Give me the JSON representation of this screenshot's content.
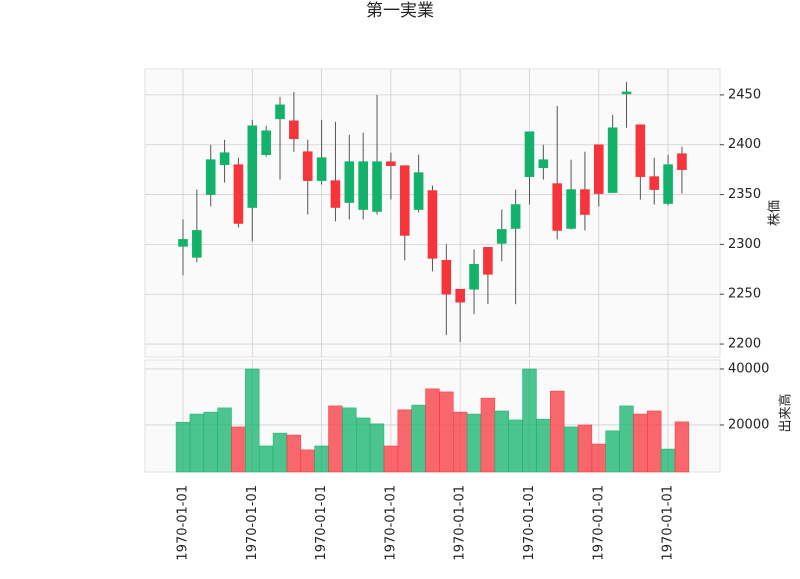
{
  "chart_data": {
    "type": "candlestick",
    "title": "第一実業",
    "categories": [
      "1970-01-01",
      null,
      null,
      null,
      null,
      "1970-01-01",
      null,
      null,
      null,
      null,
      "1970-01-01",
      null,
      null,
      null,
      null,
      "1970-01-01",
      null,
      null,
      null,
      null,
      "1970-01-01",
      null,
      null,
      null,
      null,
      "1970-01-01",
      null,
      null,
      null,
      null,
      "1970-01-01",
      null,
      null,
      null,
      null,
      "1970-01-01",
      null
    ],
    "open": [
      2298,
      2287,
      2350,
      2380,
      2380,
      2337,
      2390,
      2426,
      2424,
      2393,
      2364,
      2364,
      2342,
      2335,
      2333,
      2383,
      2379,
      2335,
      2354,
      2284,
      2255,
      2255,
      2297,
      2301,
      2316,
      2368,
      2377,
      2361,
      2316,
      2355,
      2400,
      2352,
      2451,
      2420,
      2368,
      2341,
      2391
    ],
    "high": [
      2325,
      2355,
      2400,
      2405,
      2387,
      2425,
      2419,
      2448,
      2453,
      2405,
      2425,
      2423,
      2410,
      2412,
      2450,
      2392,
      2379,
      2390,
      2359,
      2300,
      2255,
      2295,
      2297,
      2335,
      2355,
      2413,
      2400,
      2439,
      2385,
      2393,
      2400,
      2430,
      2463,
      2420,
      2387,
      2390,
      2398
    ],
    "low": [
      2269,
      2282,
      2338,
      2362,
      2317,
      2303,
      2388,
      2365,
      2393,
      2330,
      2360,
      2323,
      2325,
      2325,
      2330,
      2345,
      2284,
      2332,
      2273,
      2209,
      2202,
      2230,
      2240,
      2283,
      2240,
      2340,
      2365,
      2305,
      2315,
      2314,
      2338,
      2352,
      2417,
      2345,
      2340,
      2339,
      2351
    ],
    "close": [
      2305,
      2314,
      2385,
      2392,
      2321,
      2419,
      2414,
      2440,
      2406,
      2364,
      2387,
      2337,
      2383,
      2383,
      2383,
      2379,
      2309,
      2372,
      2286,
      2250,
      2242,
      2280,
      2270,
      2315,
      2340,
      2413,
      2385,
      2314,
      2355,
      2330,
      2351,
      2417,
      2453,
      2368,
      2355,
      2380,
      2375
    ],
    "volume": [
      21000,
      23900,
      24600,
      26100,
      19300,
      40000,
      12500,
      17100,
      16400,
      11100,
      12500,
      26800,
      26100,
      22500,
      20400,
      12500,
      25400,
      27100,
      32900,
      31800,
      24600,
      23900,
      29600,
      25000,
      21800,
      40000,
      22100,
      32100,
      19300,
      20000,
      13200,
      17900,
      26800,
      23900,
      25000,
      11400,
      21100
    ],
    "up_color": "#12b26b",
    "down_color": "#f5353b",
    "ylabel": "株価",
    "ylim": [
      2187,
      2476
    ],
    "yticks": [
      2200,
      2250,
      2300,
      2350,
      2400,
      2450
    ],
    "volume_label": "出来高",
    "volume_ylim": [
      3200,
      43200
    ],
    "volume_yticks": [
      20000,
      40000
    ],
    "grid": true
  }
}
